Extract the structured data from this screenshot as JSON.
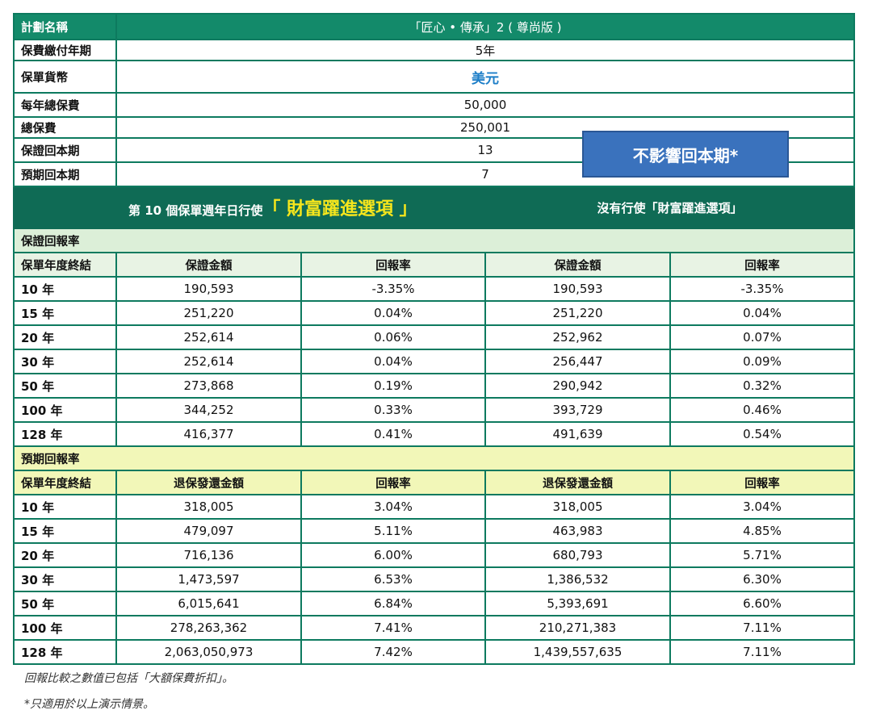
{
  "plan": {
    "name_label": "計劃名稱",
    "name_value": "「匠心 • 傳承」2 ( 尊尚版 )",
    "rows": [
      {
        "label": "保費繳付年期",
        "value": "5年"
      },
      {
        "label": "保單貨幣",
        "value": "美元"
      },
      {
        "label": "每年總保費",
        "value": "50,000"
      },
      {
        "label": "總保費",
        "value": "250,001"
      },
      {
        "label": "保證回本期",
        "value": "13"
      },
      {
        "label": "預期回本期",
        "value": "7"
      }
    ]
  },
  "badge": "不影響回本期*",
  "option_header": {
    "left_prefix": "第 10 個保單週年日行使",
    "left_emphasis": "「 財富躍進選項 」",
    "right": "沒有行使「財富躍進選項」"
  },
  "guaranteed": {
    "section_title": "保證回報率",
    "columns": [
      "保單年度終結",
      "保證金額",
      "回報率",
      "保證金額",
      "回報率"
    ],
    "rows": [
      [
        "10 年",
        "190,593",
        "-3.35%",
        "190,593",
        "-3.35%"
      ],
      [
        "15 年",
        "251,220",
        "0.04%",
        "251,220",
        "0.04%"
      ],
      [
        "20 年",
        "252,614",
        "0.06%",
        "252,962",
        "0.07%"
      ],
      [
        "30 年",
        "252,614",
        "0.04%",
        "256,447",
        "0.09%"
      ],
      [
        "50 年",
        "273,868",
        "0.19%",
        "290,942",
        "0.32%"
      ],
      [
        "100 年",
        "344,252",
        "0.33%",
        "393,729",
        "0.46%"
      ],
      [
        "128 年",
        "416,377",
        "0.41%",
        "491,639",
        "0.54%"
      ]
    ]
  },
  "projected": {
    "section_title": "預期回報率",
    "columns": [
      "保單年度終結",
      "退保發還金額",
      "回報率",
      "退保發還金額",
      "回報率"
    ],
    "rows": [
      [
        "10 年",
        "318,005",
        "3.04%",
        "318,005",
        "3.04%"
      ],
      [
        "15 年",
        "479,097",
        "5.11%",
        "463,983",
        "4.85%"
      ],
      [
        "20 年",
        "716,136",
        "6.00%",
        "680,793",
        "5.71%"
      ],
      [
        "30 年",
        "1,473,597",
        "6.53%",
        "1,386,532",
        "6.30%"
      ],
      [
        "50 年",
        "6,015,641",
        "6.84%",
        "5,393,691",
        "6.60%"
      ],
      [
        "100 年",
        "278,263,362",
        "7.41%",
        "210,271,383",
        "7.11%"
      ],
      [
        "128 年",
        "2,063,050,973",
        "7.42%",
        "1,439,557,635",
        "7.11%"
      ]
    ]
  },
  "notes": [
    "回報比較之數值已包括「大額保費折扣」。",
    "*只適用於以上演示情景。"
  ],
  "colors": {
    "header_green": "#138a6a",
    "dark_green": "#0f6b55",
    "accent_yellow": "#f6e61c",
    "badge_blue": "#3a72bd",
    "currency_blue": "#1e7fc8"
  }
}
